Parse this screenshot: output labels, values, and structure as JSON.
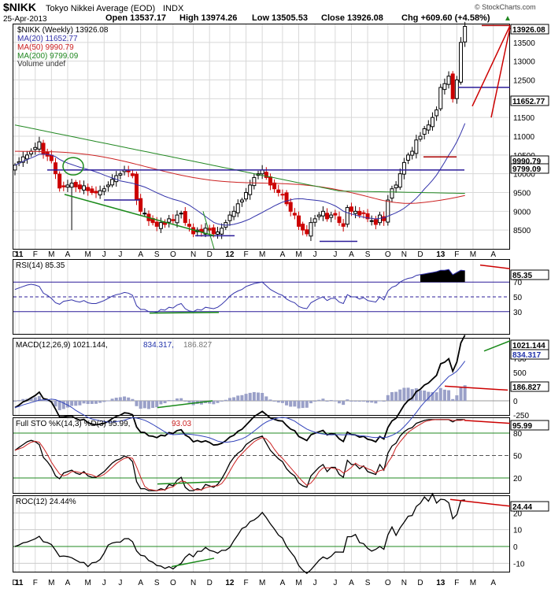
{
  "header": {
    "symbol": "$NIKK",
    "name": "Tokyo Nikkei Average (EOD)",
    "exchange": "INDX",
    "date": "25-Apr-2013",
    "open": "Open 13537.17",
    "high": "High 13974.26",
    "low": "Low 13505.53",
    "close": "Close 13926.08",
    "change": "Chg +609.60 (+4.58%)",
    "change_arrow": "▲",
    "watermark": "© StockCharts.com"
  },
  "legend": {
    "price": "$NIKK (Weekly) 13926.08",
    "ma20": "MA(20) 11652.77",
    "ma50": "MA(50) 9990.79",
    "ma200": "MA(200) 9799.09",
    "volume": "Volume undef"
  },
  "colors": {
    "up": "#000000",
    "down": "#cc0000",
    "ma20": "#3333aa",
    "ma50": "#cc2222",
    "ma200": "#228822",
    "support": "#2b1c99",
    "trend": "#1a8a1a",
    "badge": "#000000"
  },
  "x_axis": {
    "labels": [
      {
        "t": "D",
        "w": 0
      },
      {
        "t": "11",
        "w": 1,
        "b": true
      },
      {
        "t": "F",
        "w": 5
      },
      {
        "t": "M",
        "w": 9
      },
      {
        "t": "A",
        "w": 13
      },
      {
        "t": "M",
        "w": 18
      },
      {
        "t": "J",
        "w": 22
      },
      {
        "t": "J",
        "w": 26
      },
      {
        "t": "A",
        "w": 31
      },
      {
        "t": "S",
        "w": 35
      },
      {
        "t": "O",
        "w": 39
      },
      {
        "t": "N",
        "w": 44
      },
      {
        "t": "D",
        "w": 48
      },
      {
        "t": "12",
        "w": 53,
        "b": true
      },
      {
        "t": "F",
        "w": 57
      },
      {
        "t": "M",
        "w": 61
      },
      {
        "t": "A",
        "w": 66
      },
      {
        "t": "M",
        "w": 70
      },
      {
        "t": "J",
        "w": 74
      },
      {
        "t": "J",
        "w": 79
      },
      {
        "t": "A",
        "w": 83
      },
      {
        "t": "S",
        "w": 87
      },
      {
        "t": "O",
        "w": 92
      },
      {
        "t": "N",
        "w": 96
      },
      {
        "t": "D",
        "w": 100
      },
      {
        "t": "13",
        "w": 105,
        "b": true
      },
      {
        "t": "F",
        "w": 109
      },
      {
        "t": "M",
        "w": 113
      },
      {
        "t": "A",
        "w": 118
      }
    ]
  },
  "panels": {
    "price": {
      "ticks": [
        "13500",
        "13000",
        "12500",
        "12000",
        "11500",
        "11000",
        "10500",
        "10000",
        "9500",
        "9000",
        "8500"
      ],
      "badges": [
        "13926.08",
        "11652.77",
        "9990.79",
        "9799.09"
      ]
    },
    "rsi": {
      "title": "RSI(14) 85.35",
      "badge": "85.35",
      "ticks": [
        "70",
        "50",
        "30"
      ]
    },
    "macd": {
      "title_a": "MACD(12,26,9) 1021.144,",
      "title_b": "834.317,",
      "title_c": "186.827",
      "badges": [
        "1021.144",
        "834.317",
        "186.827"
      ],
      "ticks": [
        "750",
        "500",
        "250",
        "0",
        "-250"
      ]
    },
    "sto": {
      "title_a": "Full STO %K(14,3) %D(3) 95.99,",
      "title_b": "93.03",
      "badge": "95.99",
      "ticks": [
        "80",
        "50",
        "20"
      ]
    },
    "roc": {
      "title": "ROC(12) 24.44%",
      "badge": "24.44",
      "ticks": [
        "20",
        "10",
        "0",
        "-10"
      ]
    }
  },
  "chart_data": {
    "type": "candlestick",
    "frequency": "weekly",
    "x_range": [
      "Dec 2010",
      "Apr 2013"
    ],
    "price_ylim": [
      8000,
      14000
    ],
    "close": [
      10230,
      10320,
      10450,
      10500,
      10600,
      10700,
      10850,
      10520,
      10470,
      10350,
      10000,
      9620,
      9650,
      9700,
      9750,
      9650,
      9600,
      9680,
      9550,
      9500,
      9490,
      9550,
      9600,
      9700,
      9850,
      9950,
      10000,
      10100,
      10050,
      9950,
      9300,
      9000,
      8950,
      8750,
      8700,
      8600,
      8700,
      8650,
      8800,
      8750,
      8900,
      8950,
      8700,
      8600,
      8400,
      8500,
      8450,
      8550,
      8500,
      8400,
      8450,
      8550,
      8700,
      8900,
      9000,
      9200,
      9300,
      9500,
      9700,
      9900,
      10000,
      10100,
      9900,
      9700,
      9600,
      9500,
      9450,
      9200,
      9000,
      8900,
      8600,
      8500,
      8400,
      8700,
      8800,
      8900,
      9000,
      8800,
      8900,
      8900,
      8700,
      8600,
      9100,
      9000,
      9000,
      8900,
      8950,
      8800,
      8750,
      8650,
      8900,
      8750,
      9300,
      9600,
      9700,
      10000,
      10300,
      10500,
      10600,
      10900,
      11000,
      11200,
      11300,
      11500,
      11700,
      12300,
      12400,
      12600,
      12000,
      12500,
      13500,
      13926
    ],
    "rsi": [
      60,
      62,
      64,
      66,
      67,
      66,
      64,
      55,
      52,
      48,
      42,
      40,
      44,
      45,
      46,
      44,
      43,
      45,
      42,
      41,
      41,
      43,
      45,
      48,
      51,
      53,
      54,
      56,
      55,
      52,
      38,
      33,
      33,
      30,
      30,
      29,
      33,
      32,
      36,
      35,
      39,
      41,
      34,
      31,
      30,
      33,
      32,
      36,
      35,
      34,
      36,
      40,
      45,
      51,
      55,
      58,
      60,
      64,
      66,
      68,
      69,
      70,
      65,
      60,
      57,
      54,
      52,
      47,
      44,
      42,
      37,
      35,
      34,
      42,
      45,
      48,
      50,
      45,
      48,
      48,
      43,
      41,
      53,
      50,
      50,
      47,
      49,
      45,
      44,
      43,
      50,
      46,
      58,
      63,
      65,
      70,
      73,
      75,
      76,
      79,
      80,
      81,
      82,
      83,
      84,
      86,
      86,
      87,
      80,
      83,
      86,
      85.35
    ],
    "macd_hist_range": [
      -250,
      1100
    ],
    "sto_k_range": [
      0,
      100
    ],
    "roc_range": [
      -15,
      30
    ]
  }
}
